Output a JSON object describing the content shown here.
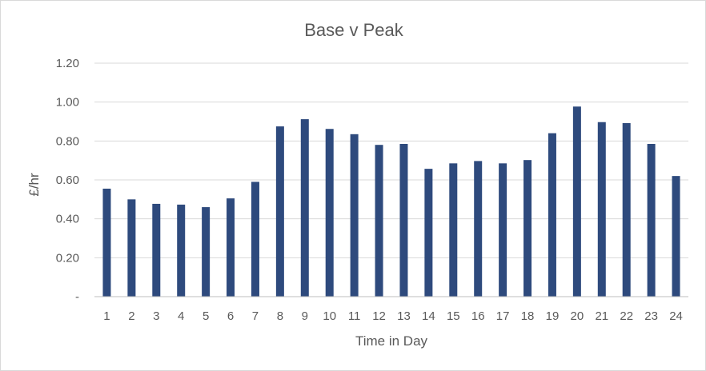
{
  "chart_data": {
    "type": "bar",
    "title": "Base v Peak",
    "xlabel": "Time in Day",
    "ylabel": "£/hr",
    "categories": [
      "1",
      "2",
      "3",
      "4",
      "5",
      "6",
      "7",
      "8",
      "9",
      "10",
      "11",
      "12",
      "13",
      "14",
      "15",
      "16",
      "17",
      "18",
      "19",
      "20",
      "21",
      "22",
      "23",
      "24"
    ],
    "values": [
      0.555,
      0.5,
      0.477,
      0.473,
      0.46,
      0.505,
      0.59,
      0.875,
      0.912,
      0.862,
      0.835,
      0.78,
      0.785,
      0.657,
      0.685,
      0.697,
      0.685,
      0.702,
      0.84,
      0.977,
      0.897,
      0.892,
      0.785,
      0.62
    ],
    "ylim": [
      0,
      1.2
    ],
    "yticks": [
      {
        "value": 0,
        "label": "-"
      },
      {
        "value": 0.2,
        "label": "0.20"
      },
      {
        "value": 0.4,
        "label": "0.40"
      },
      {
        "value": 0.6,
        "label": "0.60"
      },
      {
        "value": 0.8,
        "label": "0.80"
      },
      {
        "value": 1.0,
        "label": "1.00"
      },
      {
        "value": 1.2,
        "label": "1.20"
      }
    ],
    "grid": true,
    "legend": "none",
    "bar_color": "#2e4a7d"
  }
}
